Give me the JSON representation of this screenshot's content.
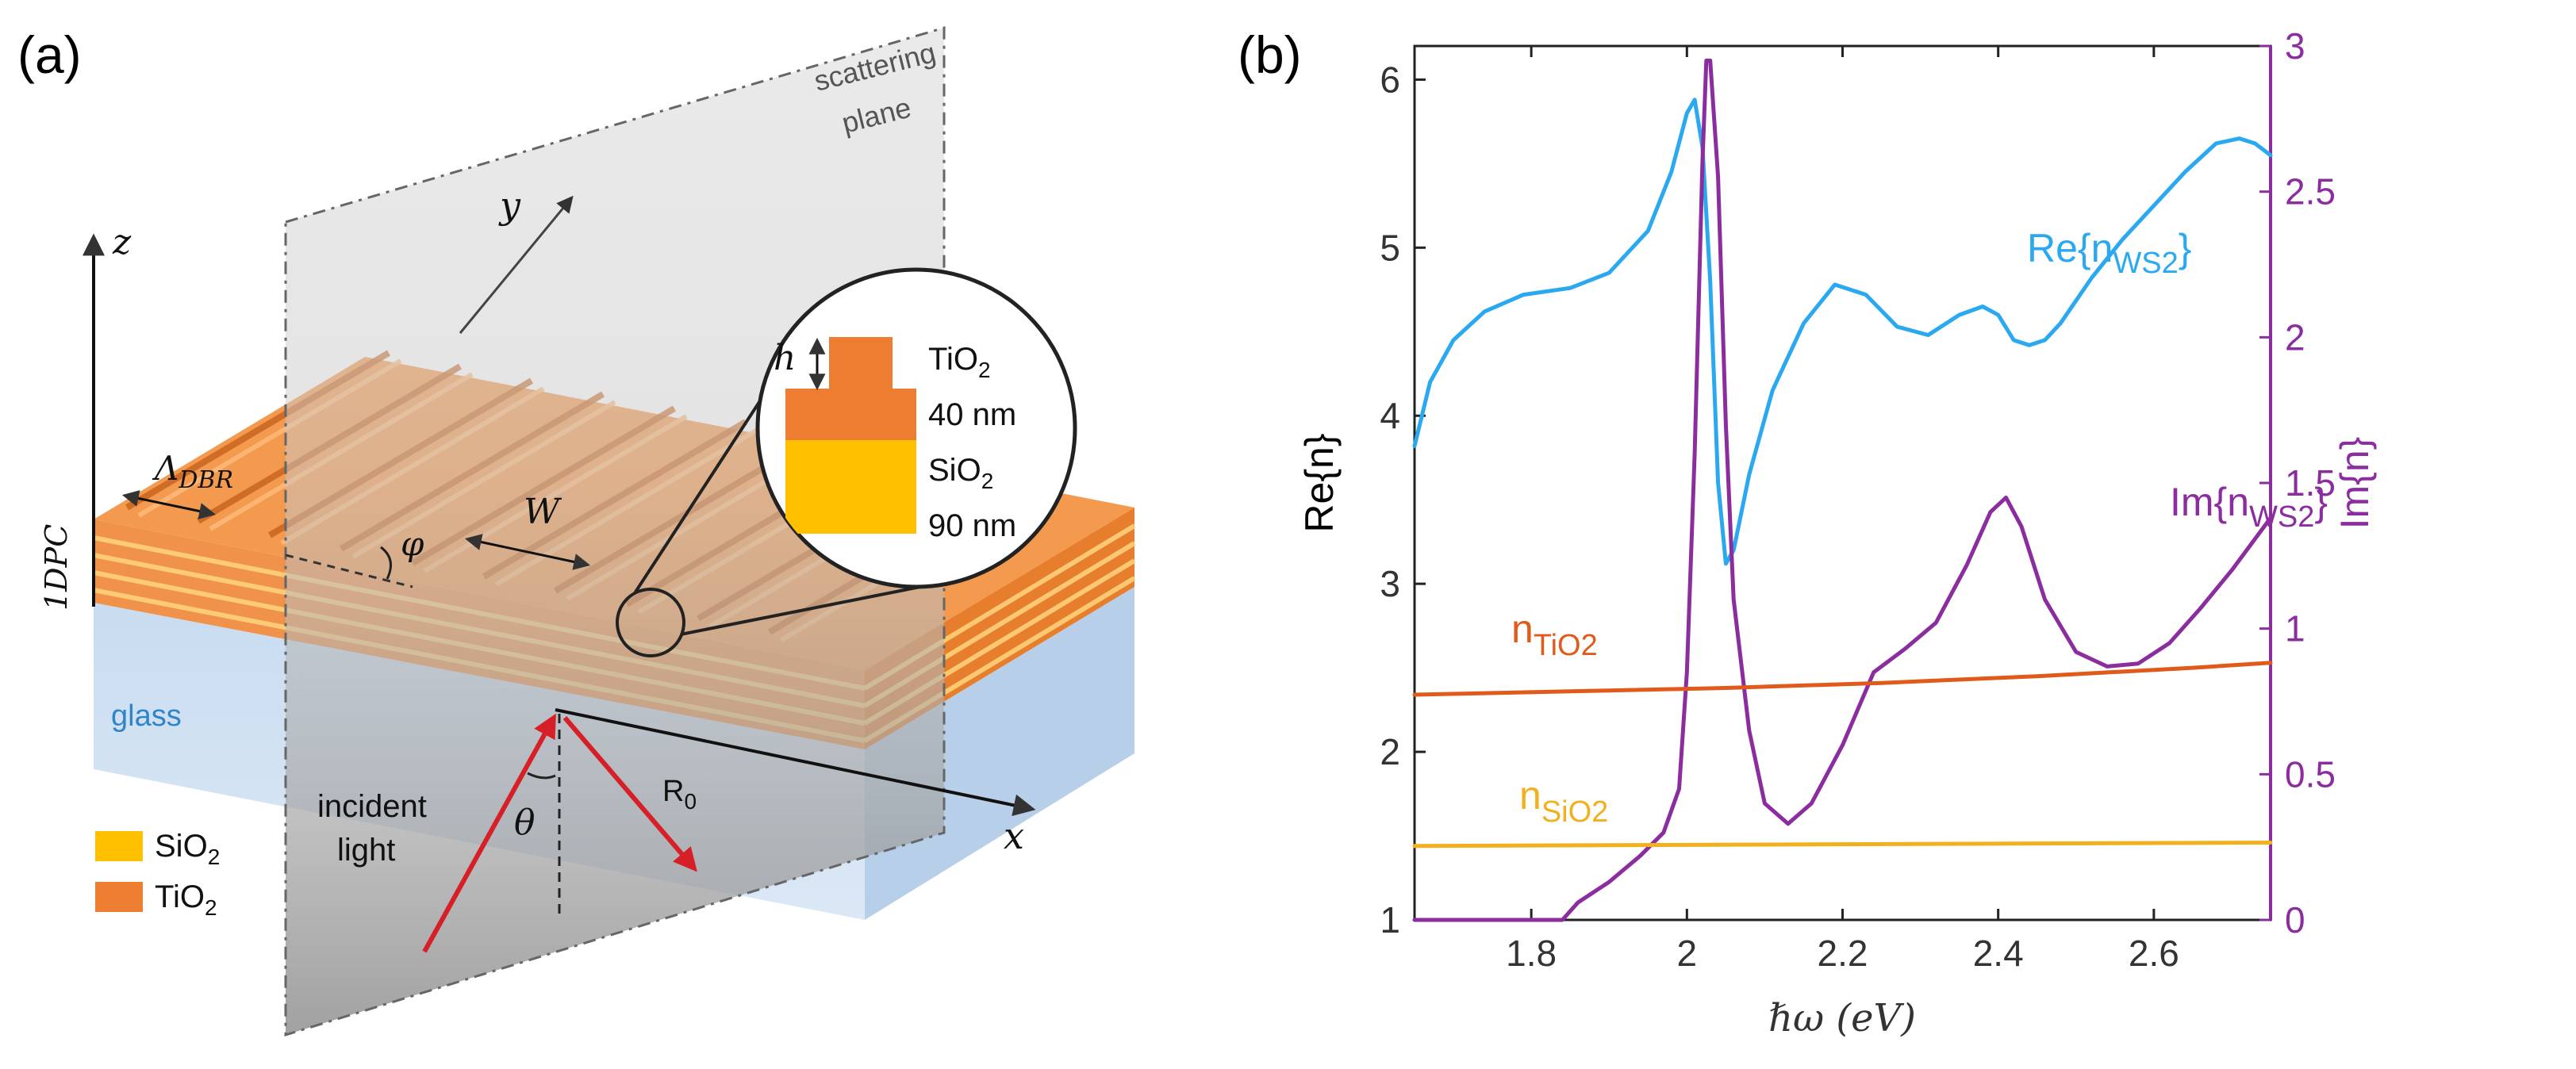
{
  "panel_a": {
    "label": "(a)",
    "scattering_plane": {
      "line1": "scattering",
      "line2": "plane"
    },
    "axis_z": "z",
    "axis_y": "y",
    "axis_x": "x",
    "dpc_label": "1DPC",
    "period_label": "Λ",
    "period_sub": "DBR",
    "width_label": "W",
    "angle_phi": "φ",
    "angle_theta": "θ",
    "glass_label": "glass",
    "incident": {
      "line1": "incident",
      "line2": "light"
    },
    "reflected": {
      "main": "R",
      "sub": "0"
    },
    "inset": {
      "height_label": "h",
      "tio2": {
        "main": "TiO",
        "sub": "2"
      },
      "tio2_thickness": "40 nm",
      "sio2": {
        "main": "SiO",
        "sub": "2"
      },
      "sio2_thickness": "90 nm"
    },
    "legend": [
      {
        "main": "SiO",
        "sub": "2",
        "color": "#ffc000"
      },
      {
        "main": "TiO",
        "sub": "2",
        "color": "#ed7d31"
      }
    ]
  },
  "chart_data": {
    "type": "line",
    "panel_label": "(b)",
    "xlabel": "ℏω (eV)",
    "ylabel_left": "Re{n}",
    "ylabel_right": "Im{n}",
    "xlim": [
      1.65,
      2.75
    ],
    "ylim_left": [
      1,
      6.2
    ],
    "ylim_right": [
      0,
      3
    ],
    "xticks": [
      1.8,
      2,
      2.2,
      2.4,
      2.6
    ],
    "xtick_labels": [
      "1.8",
      "2",
      "2.2",
      "2.4",
      "2.6"
    ],
    "yticks_left": [
      1,
      2,
      3,
      4,
      5,
      6
    ],
    "yticks_left_labels": [
      "1",
      "2",
      "3",
      "4",
      "5",
      "6"
    ],
    "yticks_right": [
      0,
      0.5,
      1,
      1.5,
      2,
      2.5,
      3
    ],
    "yticks_right_labels": [
      "0",
      "0.5",
      "1",
      "1.5",
      "2",
      "2.5",
      "3"
    ],
    "grid": false,
    "series": [
      {
        "name": "Re{n_WS2}",
        "label_main": "Re{n",
        "label_sub": "WS2",
        "label_end": "}",
        "axis": "left",
        "color": "#2aa8f0",
        "x": [
          1.65,
          1.67,
          1.7,
          1.74,
          1.79,
          1.85,
          1.9,
          1.95,
          1.98,
          2.0,
          2.01,
          2.02,
          2.03,
          2.04,
          2.05,
          2.06,
          2.08,
          2.11,
          2.15,
          2.19,
          2.23,
          2.27,
          2.31,
          2.35,
          2.38,
          2.4,
          2.42,
          2.44,
          2.46,
          2.48,
          2.52,
          2.56,
          2.6,
          2.64,
          2.68,
          2.71,
          2.73,
          2.75
        ],
        "values": [
          3.82,
          4.2,
          4.45,
          4.62,
          4.72,
          4.76,
          4.85,
          5.1,
          5.45,
          5.8,
          5.88,
          5.6,
          4.8,
          3.6,
          3.12,
          3.2,
          3.65,
          4.15,
          4.55,
          4.78,
          4.72,
          4.53,
          4.48,
          4.6,
          4.65,
          4.6,
          4.45,
          4.42,
          4.45,
          4.55,
          4.82,
          5.05,
          5.25,
          5.45,
          5.62,
          5.65,
          5.62,
          5.55
        ]
      },
      {
        "name": "Im{n_WS2}",
        "label_main": "Im{n",
        "label_sub": "WS2",
        "label_end": "}",
        "axis": "right",
        "color": "#8b2d9e",
        "x": [
          1.65,
          1.75,
          1.83,
          1.84,
          1.86,
          1.9,
          1.94,
          1.97,
          1.99,
          2.0,
          2.01,
          2.02,
          2.025,
          2.03,
          2.04,
          2.05,
          2.06,
          2.08,
          2.1,
          2.13,
          2.16,
          2.2,
          2.24,
          2.28,
          2.32,
          2.36,
          2.39,
          2.41,
          2.43,
          2.46,
          2.5,
          2.54,
          2.58,
          2.62,
          2.66,
          2.7,
          2.75
        ],
        "values": [
          0.0,
          0.0,
          0.0,
          0.0,
          0.06,
          0.13,
          0.22,
          0.3,
          0.45,
          0.85,
          1.6,
          2.6,
          2.95,
          2.95,
          2.55,
          1.7,
          1.1,
          0.65,
          0.4,
          0.33,
          0.4,
          0.6,
          0.85,
          0.93,
          1.02,
          1.22,
          1.4,
          1.45,
          1.35,
          1.1,
          0.92,
          0.87,
          0.88,
          0.95,
          1.07,
          1.2,
          1.38
        ]
      },
      {
        "name": "n_TiO2",
        "label_main": "n",
        "label_sub": "TiO2",
        "label_end": "",
        "axis": "left",
        "color": "#e05a1c",
        "x": [
          1.65,
          1.85,
          2.05,
          2.25,
          2.45,
          2.65,
          2.75
        ],
        "values": [
          2.34,
          2.36,
          2.38,
          2.41,
          2.45,
          2.5,
          2.53
        ]
      },
      {
        "name": "n_SiO2",
        "label_main": "n",
        "label_sub": "SiO2",
        "label_end": "",
        "axis": "left",
        "color": "#f2b01e",
        "x": [
          1.65,
          2.2,
          2.75
        ],
        "values": [
          1.44,
          1.45,
          1.46
        ]
      }
    ]
  }
}
